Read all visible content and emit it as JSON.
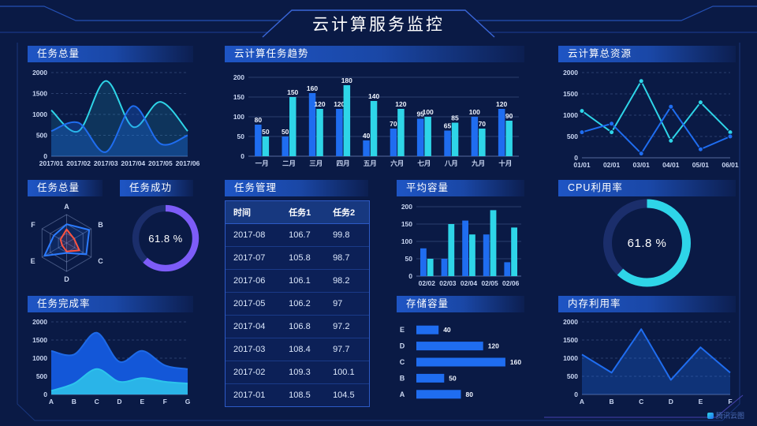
{
  "header": {
    "title": "云计算服务监控"
  },
  "watermark": "腾讯云图",
  "colors": {
    "blue": "#1f6df0",
    "cyan": "#2ed5e8",
    "purple": "#7d5cf8",
    "red": "#ff5340",
    "blue_solid": "#1357d8",
    "cyan_solid": "#2ab4e8",
    "frame_line": "#2450b4",
    "panel_header": "#1e55c4"
  },
  "panels": {
    "tasks_total_line": {
      "title": "任务总量"
    },
    "task_trend": {
      "title": "云计算任务趋势"
    },
    "total_resources": {
      "title": "云计算总资源"
    },
    "tasks_total_radar": {
      "title": "任务总量"
    },
    "task_success": {
      "title": "任务成功",
      "value": "61.8 %"
    },
    "task_table": {
      "title": "任务管理",
      "columns": [
        "时间",
        "任务1",
        "任务2"
      ],
      "rows": [
        [
          "2017-08",
          "106.7",
          "99.8"
        ],
        [
          "2017-07",
          "105.8",
          "98.7"
        ],
        [
          "2017-06",
          "106.1",
          "98.2"
        ],
        [
          "2017-05",
          "106.2",
          "97"
        ],
        [
          "2017-04",
          "106.8",
          "97.2"
        ],
        [
          "2017-03",
          "108.4",
          "97.7"
        ],
        [
          "2017-02",
          "109.3",
          "100.1"
        ],
        [
          "2017-01",
          "108.5",
          "104.5"
        ]
      ]
    },
    "avg_capacity": {
      "title": "平均容量"
    },
    "cpu": {
      "title": "CPU利用率",
      "value": "61.8 %"
    },
    "completion": {
      "title": "任务完成率"
    },
    "storage": {
      "title": "存储容量"
    },
    "memory": {
      "title": "内存利用率"
    }
  },
  "chart_data": [
    {
      "id": "tasksTotalLine",
      "type": "line",
      "smooth": true,
      "area": true,
      "gridDash": true,
      "title": "任务总量",
      "categories": [
        "2017/01",
        "2017/02",
        "2017/03",
        "2017/04",
        "2017/05",
        "2017/06"
      ],
      "ylim": [
        0,
        2000
      ],
      "yticks": [
        0,
        500,
        1000,
        1500,
        2000
      ],
      "series": [
        {
          "color": "cyan",
          "values": [
            1100,
            600,
            1800,
            700,
            1300,
            600
          ]
        },
        {
          "color": "blue",
          "values": [
            600,
            800,
            100,
            1200,
            300,
            500
          ]
        }
      ]
    },
    {
      "id": "taskTrend",
      "type": "bar",
      "labels": true,
      "title": "云计算任务趋势",
      "categories": [
        "一月",
        "二月",
        "三月",
        "四月",
        "五月",
        "六月",
        "七月",
        "八月",
        "九月",
        "十月"
      ],
      "ylim": [
        0,
        200
      ],
      "yticks": [
        0,
        50,
        100,
        150,
        200
      ],
      "series": [
        {
          "color": "blue",
          "values": [
            80,
            50,
            160,
            120,
            40,
            70,
            95,
            65,
            100,
            120
          ]
        },
        {
          "color": "cyan",
          "values": [
            50,
            150,
            120,
            180,
            140,
            120,
            100,
            85,
            70,
            90
          ]
        }
      ]
    },
    {
      "id": "totalResources",
      "type": "line",
      "smooth": false,
      "markers": true,
      "gridDash": true,
      "title": "云计算总资源",
      "categories": [
        "01/01",
        "02/01",
        "03/01",
        "04/01",
        "05/01",
        "06/01"
      ],
      "ylim": [
        0,
        2000
      ],
      "yticks": [
        0,
        500,
        1000,
        1500,
        2000
      ],
      "series": [
        {
          "color": "cyan",
          "values": [
            1100,
            600,
            1800,
            400,
            1300,
            600
          ]
        },
        {
          "color": "blue",
          "values": [
            600,
            800,
            100,
            1200,
            200,
            500
          ]
        }
      ]
    },
    {
      "id": "taskRadar",
      "type": "radar",
      "title": "任务总量",
      "axes": [
        "A",
        "B",
        "C",
        "D",
        "E",
        "F"
      ],
      "max": 100,
      "series": [
        {
          "color": "blue",
          "values": [
            66,
            92,
            80,
            35,
            90,
            52
          ]
        },
        {
          "color": "red",
          "values": [
            48,
            30,
            52,
            30,
            18,
            25
          ]
        }
      ]
    },
    {
      "id": "successDonut",
      "type": "donut",
      "title": "任务成功",
      "percent": 61.8,
      "color": "purple",
      "label": "61.8 %"
    },
    {
      "id": "avgCapacity",
      "type": "bar",
      "labels": false,
      "title": "平均容量",
      "categories": [
        "02/02",
        "02/03",
        "02/04",
        "02/05",
        "02/06"
      ],
      "ylim": [
        0,
        200
      ],
      "yticks": [
        0,
        50,
        100,
        150,
        200
      ],
      "series": [
        {
          "color": "blue",
          "values": [
            80,
            50,
            160,
            120,
            40
          ]
        },
        {
          "color": "cyan",
          "values": [
            50,
            150,
            120,
            190,
            140
          ]
        }
      ]
    },
    {
      "id": "cpuDonut",
      "type": "donut",
      "title": "CPU利用率",
      "percent": 61.8,
      "color": "cyan",
      "label": "61.8 %"
    },
    {
      "id": "completion",
      "type": "line",
      "smooth": true,
      "area": true,
      "solid": true,
      "gridDash": true,
      "title": "任务完成率",
      "categories": [
        "A",
        "B",
        "C",
        "D",
        "E",
        "F",
        "G"
      ],
      "ylim": [
        0,
        2000
      ],
      "yticks": [
        0,
        500,
        1000,
        1500,
        2000
      ],
      "series": [
        {
          "color": "blue_solid",
          "values": [
            1200,
            1100,
            1700,
            900,
            1200,
            800,
            700
          ]
        },
        {
          "color": "cyan_solid",
          "values": [
            100,
            300,
            700,
            350,
            450,
            350,
            300
          ]
        }
      ]
    },
    {
      "id": "storage",
      "type": "hbar",
      "title": "存储容量",
      "categories": [
        "E",
        "D",
        "C",
        "B",
        "A"
      ],
      "values": [
        40,
        120,
        160,
        50,
        80
      ],
      "xmax": 170
    },
    {
      "id": "memory",
      "type": "line",
      "smooth": false,
      "area": true,
      "gridDash": true,
      "title": "内存利用率",
      "categories": [
        "A",
        "B",
        "C",
        "D",
        "E",
        "F"
      ],
      "ylim": [
        0,
        2000
      ],
      "yticks": [
        0,
        500,
        1000,
        1500,
        2000
      ],
      "series": [
        {
          "color": "blue",
          "values": [
            1100,
            600,
            1800,
            400,
            1300,
            600
          ]
        }
      ]
    }
  ]
}
